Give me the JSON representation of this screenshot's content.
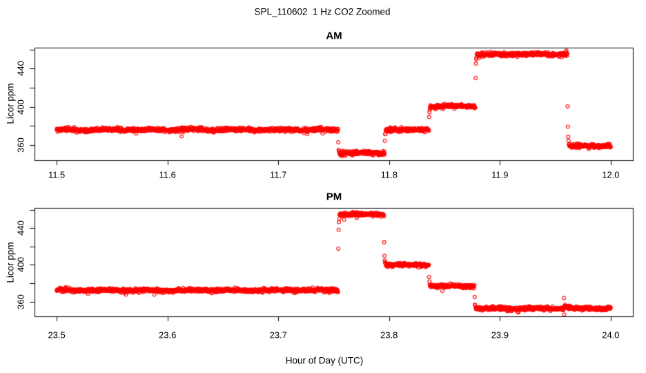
{
  "title": "SPL_110602  1 Hz CO2 Zoomed",
  "xlabel": "Hour of Day (UTC)",
  "colors": {
    "points": "#FF0000",
    "axis": "#000000",
    "text": "#000000",
    "background": "#FFFFFF"
  },
  "chart_data": [
    {
      "type": "scatter",
      "panel": "AM",
      "title": "AM",
      "ylabel": "Licor ppm",
      "marker": "open-circle",
      "sample_rate_hz": 1,
      "xlim": [
        11.48,
        12.02
      ],
      "ylim": [
        344,
        462
      ],
      "xticks": [
        11.5,
        11.6,
        11.7,
        11.8,
        11.9,
        12.0
      ],
      "yticks_labeled": [
        360,
        400,
        440
      ],
      "yticks_unlabeled": [
        380,
        420,
        460
      ],
      "grid": false,
      "legend": "none",
      "segments": [
        {
          "t_start": 11.5,
          "t_end": 11.754,
          "level": 376
        },
        {
          "t_start": 11.754,
          "t_end": 11.796,
          "level": 351.5
        },
        {
          "t_start": 11.796,
          "t_end": 11.836,
          "level": 376
        },
        {
          "t_start": 11.836,
          "t_end": 11.878,
          "level": 400.5
        },
        {
          "t_start": 11.878,
          "t_end": 11.961,
          "level": 455
        },
        {
          "t_start": 11.961,
          "t_end": 12.0,
          "level": 359
        }
      ],
      "anomalies": [
        {
          "kind": "blip",
          "t": 11.9595,
          "delta": 3.5,
          "duration_s": 2
        }
      ]
    },
    {
      "type": "scatter",
      "panel": "PM",
      "title": "PM",
      "ylabel": "Licor ppm",
      "marker": "open-circle",
      "sample_rate_hz": 1,
      "xlim": [
        23.48,
        24.02
      ],
      "ylim": [
        344,
        462
      ],
      "xticks": [
        23.5,
        23.6,
        23.7,
        23.8,
        23.9,
        24.0
      ],
      "yticks_labeled": [
        360,
        400,
        440
      ],
      "yticks_unlabeled": [
        380,
        420,
        460
      ],
      "grid": false,
      "legend": "none",
      "segments": [
        {
          "t_start": 23.5,
          "t_end": 23.754,
          "level": 372.5
        },
        {
          "t_start": 23.754,
          "t_end": 23.7955,
          "level": 455
        },
        {
          "t_start": 23.7955,
          "t_end": 23.836,
          "level": 400
        },
        {
          "t_start": 23.836,
          "t_end": 23.877,
          "level": 377
        },
        {
          "t_start": 23.877,
          "t_end": 24.0,
          "level": 352.5
        }
      ],
      "anomalies": [
        {
          "kind": "blip",
          "t": 23.916,
          "delta": -3,
          "duration_s": 3
        },
        {
          "kind": "spike",
          "t": 23.9578,
          "points": [
            364,
            346
          ],
          "after_bump": 3.5,
          "bump_decay_s": 12
        }
      ]
    }
  ]
}
